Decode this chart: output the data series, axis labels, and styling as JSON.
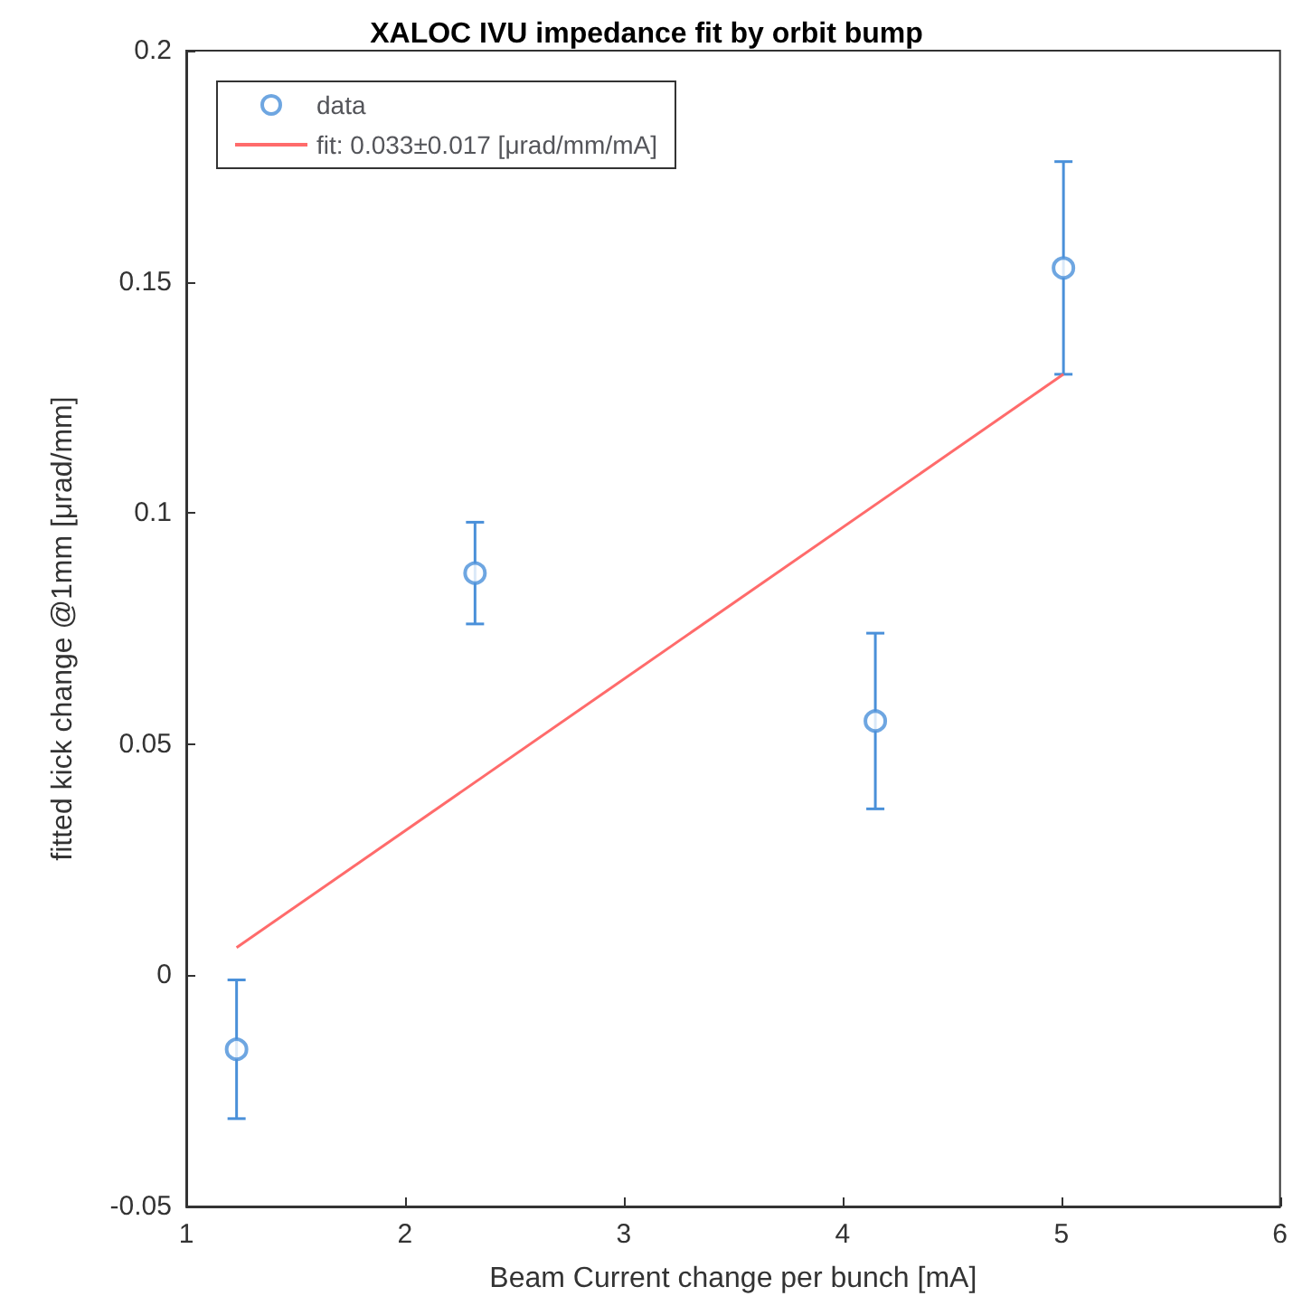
{
  "chart_data": {
    "type": "scatter",
    "title": "XALOC IVU impedance fit by orbit bump",
    "xlabel": "Beam Current change per bunch [mA]",
    "ylabel": "fitted kick change @1mm [μrad/mm]",
    "xlim": [
      1,
      6
    ],
    "xticks": [
      1,
      2,
      3,
      4,
      5,
      6
    ],
    "ylim": [
      -0.05,
      0.2
    ],
    "yticks": [
      -0.05,
      0,
      0.05,
      0.1,
      0.15,
      0.2
    ],
    "series": [
      {
        "name": "data",
        "marker": "circle",
        "color": "#4a90d9",
        "x": [
          1.23,
          2.32,
          4.15,
          5.01
        ],
        "values": [
          -0.016,
          0.087,
          0.055,
          0.153
        ],
        "errors": [
          0.015,
          0.011,
          0.019,
          0.023
        ]
      },
      {
        "name": "fit: 0.033±0.017 [μrad/mm/mA]",
        "type": "line",
        "marker": "none",
        "color": "#ff6b6b",
        "x": [
          1.23,
          5.01
        ],
        "values": [
          0.006,
          0.13
        ]
      }
    ],
    "grid": false,
    "legend": "top left"
  }
}
